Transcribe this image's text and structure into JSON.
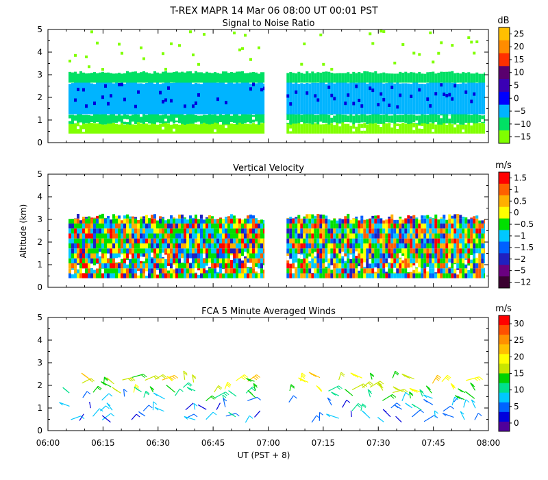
{
  "figure": {
    "title": "T-REX   MAPR 14 Mar 06   08:00 UT   00:01   PST",
    "xlabel": "UT  (PST + 8)",
    "ylabel": "Altitude (km)"
  },
  "chart_data": [
    {
      "type": "heatmap",
      "title": "Signal to Noise Ratio",
      "units": "dB",
      "xlim": [
        "06:00",
        "08:00"
      ],
      "ylim": [
        0,
        5
      ],
      "x_ticks": [
        "06:00",
        "06:15",
        "06:30",
        "06:45",
        "07:00",
        "07:15",
        "07:30",
        "07:45",
        "08:00"
      ],
      "y_ticks": [
        "0",
        "1",
        "2",
        "3",
        "4",
        "5"
      ],
      "colorbar_labels": [
        "25",
        "20",
        "15",
        "10",
        "5",
        "0",
        "−5",
        "−10",
        "−15"
      ],
      "colorbar_colors": [
        "#ffc000",
        "#ff8c00",
        "#ff3000",
        "#5a006e",
        "#3a00b4",
        "#0000ff",
        "#00b4ff",
        "#00e064",
        "#80ff00"
      ],
      "data_gap": [
        "06:59",
        "07:05"
      ],
      "layers": [
        {
          "from_km": 0.4,
          "to_km": 0.9,
          "range_db": "−15 to −10"
        },
        {
          "from_km": 0.9,
          "to_km": 1.3,
          "range_db": "−10 to −5"
        },
        {
          "from_km": 1.3,
          "to_km": 2.6,
          "range_db": "−5 to 5"
        },
        {
          "from_km": 2.6,
          "to_km": 3.1,
          "range_db": "−10 to −5"
        },
        {
          "from_km": 3.1,
          "to_km": 5.0,
          "range_db": "scattered −15"
        }
      ]
    },
    {
      "type": "heatmap",
      "title": "Vertical Velocity",
      "units": "m/s",
      "xlim": [
        "06:00",
        "08:00"
      ],
      "ylim": [
        0,
        5
      ],
      "x_ticks": [
        "06:00",
        "06:15",
        "06:30",
        "06:45",
        "07:00",
        "07:15",
        "07:30",
        "07:45",
        "08:00"
      ],
      "y_ticks": [
        "0",
        "1",
        "2",
        "3",
        "4",
        "5"
      ],
      "colorbar_labels": [
        "1.5",
        "1",
        "0.5",
        "0",
        "−0.5",
        "−1",
        "−1.5",
        "−2",
        "−5",
        "−12"
      ],
      "colorbar_colors": [
        "#ff0000",
        "#ff6000",
        "#ffb000",
        "#ffff00",
        "#00e000",
        "#00c8ff",
        "#0060ff",
        "#2020c0",
        "#6a0080",
        "#3a0030"
      ],
      "data_gap": [
        "06:59",
        "07:05"
      ],
      "valid_altitude_km": [
        0.4,
        3.1
      ]
    },
    {
      "type": "barbs",
      "title": "FCA 5 Minute Averaged Winds",
      "units": "m/s",
      "xlim": [
        "06:00",
        "08:00"
      ],
      "ylim": [
        0,
        5
      ],
      "x_ticks": [
        "06:00",
        "06:15",
        "06:30",
        "06:45",
        "07:00",
        "07:15",
        "07:30",
        "07:45",
        "08:00"
      ],
      "y_ticks": [
        "0",
        "1",
        "2",
        "3",
        "4",
        "5"
      ],
      "colorbar_labels": [
        "30",
        "25",
        "20",
        "15",
        "10",
        "5",
        "0"
      ],
      "colorbar_colors": [
        "#ff0000",
        "#ff5000",
        "#ff9000",
        "#ffc000",
        "#ffff00",
        "#c8e600",
        "#00d200",
        "#00e08c",
        "#00c8ff",
        "#0064ff",
        "#0000dc",
        "#50009a"
      ],
      "data_gap": [
        "06:59",
        "07:05"
      ],
      "barb_altitudes_km": [
        2.2,
        1.8,
        1.4,
        1.0,
        0.5
      ],
      "approx_speed_ms_by_altitude": [
        18,
        15,
        10,
        7,
        5
      ]
    }
  ]
}
